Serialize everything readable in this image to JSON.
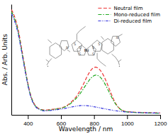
{
  "chart_data": {
    "type": "line",
    "xlabel": "Wavelength / nm",
    "ylabel": "Abs. / Arb. Units",
    "xlim": [
      300,
      1200
    ],
    "ylim": [
      0,
      1.05
    ],
    "xticks": [
      400,
      600,
      800,
      1000,
      1200
    ],
    "yticks": [],
    "tick_labels": "x",
    "grid": false,
    "legend": "upper right",
    "x": [
      300,
      310,
      320,
      330,
      340,
      350,
      360,
      370,
      380,
      390,
      400,
      410,
      420,
      430,
      440,
      450,
      460,
      470,
      480,
      490,
      500,
      510,
      520,
      530,
      540,
      550,
      560,
      570,
      580,
      590,
      600,
      610,
      620,
      630,
      640,
      650,
      660,
      670,
      680,
      690,
      700,
      710,
      720,
      730,
      740,
      750,
      760,
      770,
      780,
      790,
      800,
      810,
      820,
      830,
      840,
      850,
      860,
      870,
      880,
      890,
      900,
      910,
      920,
      930,
      940,
      950,
      960,
      970,
      980,
      990,
      1000,
      1050,
      1100,
      1150,
      1200
    ],
    "series": [
      {
        "name": "Neutral film",
        "color": "#ee3333",
        "line_style": "dashed",
        "values": [
          1.0,
          0.97,
          0.93,
          0.88,
          0.82,
          0.74,
          0.65,
          0.56,
          0.47,
          0.38,
          0.3,
          0.23,
          0.17,
          0.13,
          0.1,
          0.08,
          0.066,
          0.058,
          0.052,
          0.048,
          0.046,
          0.046,
          0.047,
          0.049,
          0.051,
          0.053,
          0.055,
          0.058,
          0.06,
          0.062,
          0.065,
          0.07,
          0.076,
          0.084,
          0.093,
          0.105,
          0.118,
          0.133,
          0.15,
          0.168,
          0.19,
          0.215,
          0.243,
          0.273,
          0.305,
          0.338,
          0.37,
          0.398,
          0.422,
          0.44,
          0.45,
          0.453,
          0.448,
          0.436,
          0.418,
          0.395,
          0.366,
          0.332,
          0.295,
          0.255,
          0.215,
          0.177,
          0.142,
          0.111,
          0.086,
          0.067,
          0.053,
          0.044,
          0.037,
          0.033,
          0.03,
          0.025,
          0.022,
          0.02,
          0.018
        ]
      },
      {
        "name": "Mono-reduced film",
        "color": "#22aa22",
        "line_style": "dashdot",
        "values": [
          0.98,
          0.95,
          0.91,
          0.86,
          0.8,
          0.72,
          0.63,
          0.54,
          0.46,
          0.37,
          0.29,
          0.22,
          0.165,
          0.125,
          0.095,
          0.075,
          0.062,
          0.054,
          0.048,
          0.044,
          0.042,
          0.042,
          0.043,
          0.045,
          0.047,
          0.05,
          0.052,
          0.055,
          0.057,
          0.06,
          0.063,
          0.067,
          0.072,
          0.079,
          0.088,
          0.098,
          0.11,
          0.123,
          0.137,
          0.153,
          0.17,
          0.19,
          0.211,
          0.234,
          0.258,
          0.282,
          0.305,
          0.327,
          0.347,
          0.362,
          0.373,
          0.378,
          0.376,
          0.368,
          0.354,
          0.334,
          0.31,
          0.282,
          0.252,
          0.22,
          0.188,
          0.157,
          0.128,
          0.103,
          0.082,
          0.065,
          0.052,
          0.043,
          0.036,
          0.031,
          0.028,
          0.022,
          0.019,
          0.017,
          0.016
        ]
      },
      {
        "name": "Di-reduced film",
        "color": "#3333dd",
        "line_style": "dashdotdot",
        "values": [
          0.96,
          0.93,
          0.89,
          0.84,
          0.78,
          0.7,
          0.62,
          0.53,
          0.44,
          0.36,
          0.28,
          0.21,
          0.155,
          0.118,
          0.09,
          0.07,
          0.058,
          0.05,
          0.044,
          0.04,
          0.038,
          0.038,
          0.039,
          0.04,
          0.042,
          0.044,
          0.046,
          0.048,
          0.05,
          0.052,
          0.054,
          0.057,
          0.06,
          0.063,
          0.067,
          0.07,
          0.073,
          0.076,
          0.079,
          0.082,
          0.085,
          0.087,
          0.088,
          0.089,
          0.089,
          0.088,
          0.087,
          0.085,
          0.083,
          0.08,
          0.077,
          0.074,
          0.071,
          0.068,
          0.065,
          0.062,
          0.059,
          0.056,
          0.053,
          0.05,
          0.047,
          0.044,
          0.041,
          0.039,
          0.037,
          0.035,
          0.033,
          0.031,
          0.03,
          0.028,
          0.027,
          0.023,
          0.02,
          0.018,
          0.017
        ]
      }
    ],
    "annotations": [
      "N",
      "S",
      "Ni",
      "S",
      "S",
      "S",
      "S",
      "S",
      "N"
    ]
  }
}
